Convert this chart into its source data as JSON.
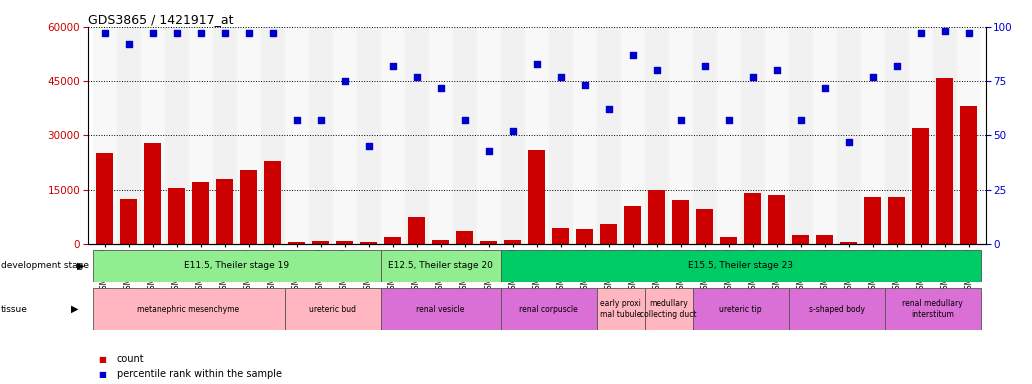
{
  "title": "GDS3865 / 1421917_at",
  "samples": [
    "GSM144610",
    "GSM144611",
    "GSM144612",
    "GSM144613",
    "GSM144614",
    "GSM144615",
    "GSM144616",
    "GSM144617",
    "GSM144618",
    "GSM144619",
    "GSM144620",
    "GSM144621",
    "GSM144585",
    "GSM144586",
    "GSM144587",
    "GSM144588",
    "GSM144589",
    "GSM144590",
    "GSM144591",
    "GSM144592",
    "GSM144593",
    "GSM144594",
    "GSM144595",
    "GSM144596",
    "GSM144597",
    "GSM144598",
    "GSM144599",
    "GSM144600",
    "GSM144601",
    "GSM144602",
    "GSM144603",
    "GSM144604",
    "GSM144605",
    "GSM144606",
    "GSM144607",
    "GSM144608",
    "GSM144609"
  ],
  "counts": [
    25000,
    12500,
    28000,
    15500,
    17000,
    18000,
    20500,
    23000,
    600,
    700,
    800,
    500,
    2000,
    7500,
    1200,
    3500,
    800,
    1000,
    26000,
    4500,
    4000,
    5500,
    10500,
    15000,
    12000,
    9500,
    2000,
    14000,
    13500,
    2500,
    2500,
    500,
    13000,
    13000,
    32000,
    46000,
    38000
  ],
  "percentiles": [
    97,
    92,
    97,
    97,
    97,
    97,
    97,
    97,
    57,
    57,
    75,
    45,
    82,
    77,
    72,
    57,
    43,
    52,
    83,
    77,
    73,
    62,
    87,
    80,
    57,
    82,
    57,
    77,
    80,
    57,
    72,
    47,
    77,
    82,
    97,
    98,
    97
  ],
  "ylim_left": [
    0,
    60000
  ],
  "ylim_right": [
    0,
    100
  ],
  "yticks_left": [
    0,
    15000,
    30000,
    45000,
    60000
  ],
  "yticks_right": [
    0,
    25,
    50,
    75,
    100
  ],
  "bar_color": "#CC0000",
  "dot_color": "#0000CC",
  "development_stages": [
    {
      "label": "E11.5, Theiler stage 19",
      "start": 0,
      "end": 11,
      "color": "#90EE90"
    },
    {
      "label": "E12.5, Theiler stage 20",
      "start": 12,
      "end": 16,
      "color": "#90EE90"
    },
    {
      "label": "E15.5, Theiler stage 23",
      "start": 17,
      "end": 36,
      "color": "#00CC66"
    }
  ],
  "tissues": [
    {
      "label": "metanephric mesenchyme",
      "start": 0,
      "end": 7,
      "color": "#FFB6C1"
    },
    {
      "label": "ureteric bud",
      "start": 8,
      "end": 11,
      "color": "#FFB6C1"
    },
    {
      "label": "renal vesicle",
      "start": 12,
      "end": 16,
      "color": "#DA70D6"
    },
    {
      "label": "renal corpuscle",
      "start": 17,
      "end": 20,
      "color": "#DA70D6"
    },
    {
      "label": "early proxi\nmal tubule",
      "start": 21,
      "end": 22,
      "color": "#FFB6C1"
    },
    {
      "label": "medullary\ncollecting duct",
      "start": 23,
      "end": 24,
      "color": "#FFB6C1"
    },
    {
      "label": "ureteric tip",
      "start": 25,
      "end": 28,
      "color": "#DA70D6"
    },
    {
      "label": "s-shaped body",
      "start": 29,
      "end": 32,
      "color": "#DA70D6"
    },
    {
      "label": "renal medullary\ninterstitum",
      "start": 33,
      "end": 36,
      "color": "#DA70D6"
    }
  ],
  "background_color": "#FFFFFF"
}
